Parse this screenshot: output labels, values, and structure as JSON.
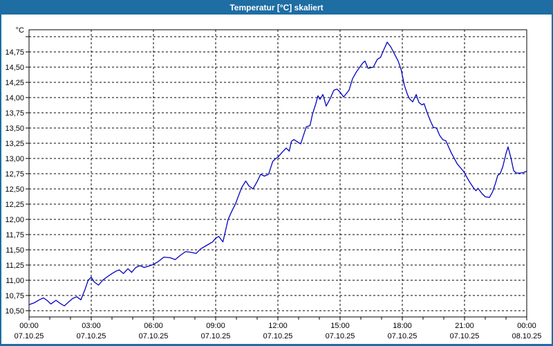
{
  "window": {
    "title": "Temperatur [°C] skaliert",
    "colors": {
      "accent": "#1e6da3",
      "titlebar_text": "#ffffff",
      "plot_background": "#ffffff",
      "grid": "#000000",
      "frame": "#000000",
      "label_text": "#000000",
      "series_line": "#0000c0"
    }
  },
  "chart_data": {
    "type": "line",
    "title": "Temperatur [°C] skaliert",
    "xlabel": "",
    "ylabel": "°C",
    "legend": "none",
    "grid": {
      "style": "dashed",
      "horizontal": true,
      "vertical": true
    },
    "x_axis": {
      "unit": "hours",
      "min": 0,
      "max": 24,
      "major_tick_step": 3,
      "minor_tick_step": 1,
      "ticks": [
        {
          "hours": 0,
          "time": "00:00",
          "date": "07.10.25"
        },
        {
          "hours": 3,
          "time": "03:00",
          "date": "07.10.25"
        },
        {
          "hours": 6,
          "time": "06:00",
          "date": "07.10.25"
        },
        {
          "hours": 9,
          "time": "09:00",
          "date": "07.10.25"
        },
        {
          "hours": 12,
          "time": "12:00",
          "date": "07.10.25"
        },
        {
          "hours": 15,
          "time": "15:00",
          "date": "07.10.25"
        },
        {
          "hours": 18,
          "time": "18:00",
          "date": "07.10.25"
        },
        {
          "hours": 21,
          "time": "21:00",
          "date": "07.10.25"
        },
        {
          "hours": 24,
          "time": "00:00",
          "date": "08.10.25"
        }
      ]
    },
    "y_axis": {
      "min": 10.4,
      "max": 15.1,
      "step": 0.25,
      "top_gridline": 15.0,
      "bottom_gridline": 10.5,
      "ticks": [
        {
          "value": 15.0,
          "label": ""
        },
        {
          "value": 14.75,
          "label": "14,75"
        },
        {
          "value": 14.5,
          "label": "14,50"
        },
        {
          "value": 14.25,
          "label": "14,25"
        },
        {
          "value": 14.0,
          "label": "14,00"
        },
        {
          "value": 13.75,
          "label": "13,75"
        },
        {
          "value": 13.5,
          "label": "13,50"
        },
        {
          "value": 13.25,
          "label": "13,25"
        },
        {
          "value": 13.0,
          "label": "13,00"
        },
        {
          "value": 12.75,
          "label": "12,75"
        },
        {
          "value": 12.5,
          "label": "12,50"
        },
        {
          "value": 12.25,
          "label": "12,25"
        },
        {
          "value": 12.0,
          "label": "12,00"
        },
        {
          "value": 11.75,
          "label": "11,75"
        },
        {
          "value": 11.5,
          "label": "11,50"
        },
        {
          "value": 11.25,
          "label": "11,25"
        },
        {
          "value": 11.0,
          "label": "11,00"
        },
        {
          "value": 10.75,
          "label": "10,75"
        },
        {
          "value": 10.5,
          "label": "10,50"
        }
      ]
    },
    "series": [
      {
        "name": "Temperatur",
        "unit": "°C",
        "points": [
          [
            0.0,
            10.6
          ],
          [
            0.25,
            10.63
          ],
          [
            0.5,
            10.68
          ],
          [
            0.7,
            10.71
          ],
          [
            0.9,
            10.66
          ],
          [
            1.05,
            10.61
          ],
          [
            1.3,
            10.67
          ],
          [
            1.5,
            10.62
          ],
          [
            1.7,
            10.58
          ],
          [
            1.9,
            10.64
          ],
          [
            2.1,
            10.7
          ],
          [
            2.3,
            10.73
          ],
          [
            2.5,
            10.68
          ],
          [
            2.7,
            10.85
          ],
          [
            2.85,
            11.0
          ],
          [
            3.0,
            11.05
          ],
          [
            3.15,
            10.97
          ],
          [
            3.35,
            10.92
          ],
          [
            3.55,
            11.0
          ],
          [
            3.7,
            11.04
          ],
          [
            4.0,
            11.11
          ],
          [
            4.2,
            11.15
          ],
          [
            4.35,
            11.17
          ],
          [
            4.55,
            11.11
          ],
          [
            4.77,
            11.19
          ],
          [
            4.95,
            11.13
          ],
          [
            5.15,
            11.21
          ],
          [
            5.35,
            11.24
          ],
          [
            5.55,
            11.21
          ],
          [
            5.75,
            11.23
          ],
          [
            6.0,
            11.26
          ],
          [
            6.2,
            11.3
          ],
          [
            6.5,
            11.38
          ],
          [
            6.8,
            11.37
          ],
          [
            7.05,
            11.34
          ],
          [
            7.3,
            11.41
          ],
          [
            7.55,
            11.47
          ],
          [
            7.8,
            11.46
          ],
          [
            8.05,
            11.44
          ],
          [
            8.3,
            11.52
          ],
          [
            8.6,
            11.58
          ],
          [
            8.85,
            11.63
          ],
          [
            9.0,
            11.69
          ],
          [
            9.15,
            11.72
          ],
          [
            9.35,
            11.63
          ],
          [
            9.6,
            12.0
          ],
          [
            9.8,
            12.15
          ],
          [
            9.95,
            12.25
          ],
          [
            10.25,
            12.52
          ],
          [
            10.45,
            12.63
          ],
          [
            10.6,
            12.55
          ],
          [
            10.8,
            12.5
          ],
          [
            11.0,
            12.62
          ],
          [
            11.17,
            12.74
          ],
          [
            11.35,
            12.71
          ],
          [
            11.55,
            12.74
          ],
          [
            11.75,
            12.95
          ],
          [
            11.9,
            13.0
          ],
          [
            12.0,
            13.02
          ],
          [
            12.2,
            13.1
          ],
          [
            12.4,
            13.17
          ],
          [
            12.55,
            13.12
          ],
          [
            12.65,
            13.28
          ],
          [
            12.77,
            13.31
          ],
          [
            13.1,
            13.24
          ],
          [
            13.37,
            13.52
          ],
          [
            13.55,
            13.54
          ],
          [
            13.67,
            13.73
          ],
          [
            13.83,
            13.9
          ],
          [
            13.93,
            14.03
          ],
          [
            14.03,
            13.97
          ],
          [
            14.17,
            14.05
          ],
          [
            14.33,
            13.86
          ],
          [
            14.53,
            13.99
          ],
          [
            14.7,
            14.12
          ],
          [
            14.85,
            14.14
          ],
          [
            15.0,
            14.09
          ],
          [
            15.17,
            14.01
          ],
          [
            15.43,
            14.12
          ],
          [
            15.6,
            14.31
          ],
          [
            15.8,
            14.43
          ],
          [
            15.95,
            14.5
          ],
          [
            16.1,
            14.57
          ],
          [
            16.2,
            14.6
          ],
          [
            16.35,
            14.48
          ],
          [
            16.6,
            14.5
          ],
          [
            16.8,
            14.63
          ],
          [
            16.95,
            14.66
          ],
          [
            17.1,
            14.78
          ],
          [
            17.27,
            14.91
          ],
          [
            17.45,
            14.83
          ],
          [
            17.6,
            14.73
          ],
          [
            17.8,
            14.6
          ],
          [
            17.95,
            14.45
          ],
          [
            18.1,
            14.2
          ],
          [
            18.25,
            14.05
          ],
          [
            18.35,
            13.98
          ],
          [
            18.5,
            13.93
          ],
          [
            18.67,
            14.05
          ],
          [
            18.8,
            13.92
          ],
          [
            18.95,
            13.88
          ],
          [
            19.05,
            13.9
          ],
          [
            19.2,
            13.75
          ],
          [
            19.35,
            13.62
          ],
          [
            19.5,
            13.51
          ],
          [
            19.65,
            13.5
          ],
          [
            19.8,
            13.38
          ],
          [
            19.95,
            13.31
          ],
          [
            20.1,
            13.29
          ],
          [
            20.35,
            13.1
          ],
          [
            20.65,
            12.91
          ],
          [
            20.95,
            12.79
          ],
          [
            21.25,
            12.61
          ],
          [
            21.45,
            12.51
          ],
          [
            21.55,
            12.47
          ],
          [
            21.65,
            12.51
          ],
          [
            21.85,
            12.42
          ],
          [
            22.0,
            12.37
          ],
          [
            22.2,
            12.36
          ],
          [
            22.35,
            12.45
          ],
          [
            22.5,
            12.6
          ],
          [
            22.6,
            12.72
          ],
          [
            22.72,
            12.75
          ],
          [
            22.85,
            12.87
          ],
          [
            23.0,
            13.08
          ],
          [
            23.1,
            13.19
          ],
          [
            23.25,
            12.99
          ],
          [
            23.37,
            12.8
          ],
          [
            23.5,
            12.76
          ],
          [
            23.7,
            12.76
          ],
          [
            23.85,
            12.77
          ],
          [
            24.0,
            12.79
          ]
        ]
      }
    ]
  }
}
